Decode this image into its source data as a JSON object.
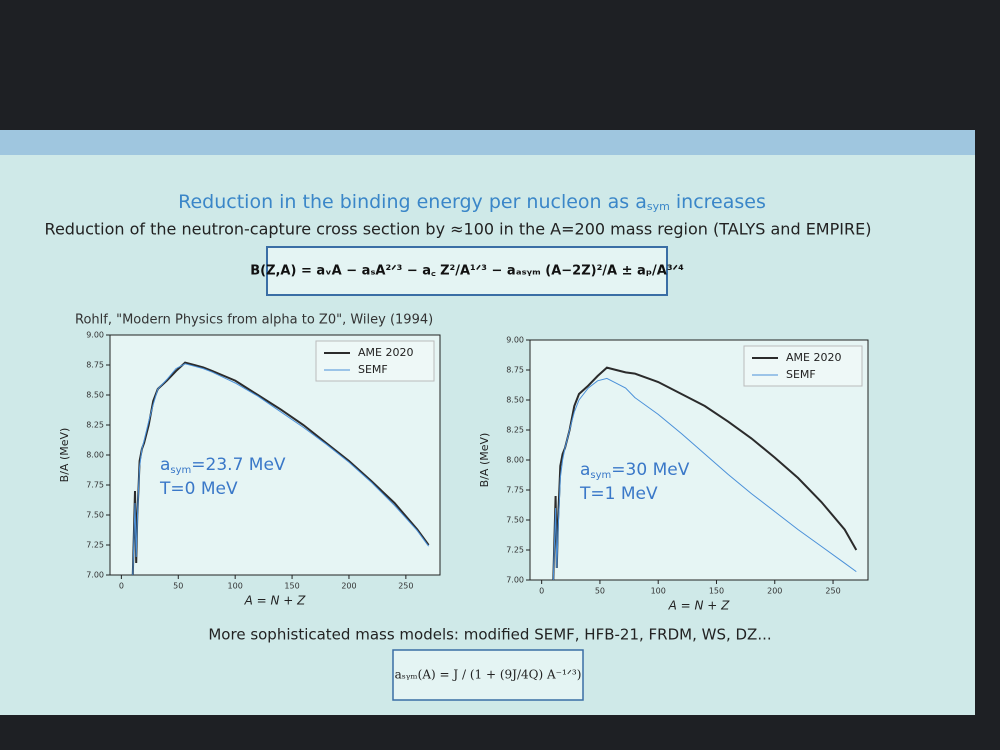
{
  "slide": {
    "title": {
      "text": "Reduction in the binding energy per nucleon as a",
      "subscript": "sym",
      "tail": " increases"
    },
    "subtitle": "Reduction of the neutron-capture cross section by ≈100 in the A=200 mass region (TALYS and EMPIRE)",
    "formula": "B(Z,A) = aᵥA − aₛA²ᐟ³ − a꜀ Z²/A¹ᐟ³ − aₐₛᵧₘ (A−2Z)²/A ± aₚ/A³ᐟ⁴",
    "citation": "Rohlf, \"Modern Physics from alpha to Z0\", Wiley (1994)",
    "footer": "More sophisticated mass models: modified SEMF, HFB-21, FRDM, WS, DZ...",
    "footer_formula": "aₛᵧₘ(A) = J / (1 + (9J/4Q) A⁻¹ᐟ³)"
  },
  "chart_data": [
    {
      "type": "line",
      "x_label": "A = N + Z",
      "y_label": "B/A (MeV)",
      "xlim": [
        -10,
        280
      ],
      "ylim": [
        7.0,
        9.0
      ],
      "xticks": [
        0,
        50,
        100,
        150,
        200,
        250
      ],
      "yticks": [
        {
          "value": 7.0,
          "label": "7.00"
        },
        {
          "value": 7.25,
          "label": "7.25"
        },
        {
          "value": 7.5,
          "label": "7.50"
        },
        {
          "value": 7.75,
          "label": "7.75"
        },
        {
          "value": 8.0,
          "label": "8.00"
        },
        {
          "value": 8.25,
          "label": "8.25"
        },
        {
          "value": 8.5,
          "label": "8.50"
        },
        {
          "value": 8.75,
          "label": "8.75"
        },
        {
          "value": 9.0,
          "label": "9.00"
        }
      ],
      "legend": "upper right",
      "annotation": {
        "symbol": "a",
        "subscript": "sym",
        "text": "=23.7 MeV",
        "line2": "T=0 MeV"
      },
      "x": [
        10,
        12,
        13,
        14,
        15,
        16,
        18,
        20,
        24,
        28,
        32,
        40,
        48,
        56,
        64,
        72,
        80,
        100,
        120,
        140,
        160,
        180,
        200,
        220,
        240,
        260,
        270
      ],
      "series": [
        {
          "name": "AME 2020",
          "color": "#2b2b2b",
          "values": [
            7.0,
            7.7,
            7.1,
            7.5,
            7.7,
            7.95,
            8.05,
            8.1,
            8.25,
            8.45,
            8.55,
            8.62,
            8.7,
            8.77,
            8.75,
            8.73,
            8.7,
            8.62,
            8.5,
            8.38,
            8.25,
            8.1,
            7.95,
            7.78,
            7.6,
            7.38,
            7.25
          ]
        },
        {
          "name": "SEMF",
          "color": "#4a90d9",
          "values": [
            7.0,
            7.6,
            7.15,
            7.45,
            7.7,
            7.9,
            8.05,
            8.12,
            8.28,
            8.42,
            8.55,
            8.63,
            8.72,
            8.76,
            8.74,
            8.72,
            8.69,
            8.6,
            8.49,
            8.36,
            8.23,
            8.09,
            7.94,
            7.77,
            7.58,
            7.37,
            7.24
          ]
        }
      ]
    },
    {
      "type": "line",
      "x_label": "A = N + Z",
      "y_label": "B/A (MeV)",
      "xlim": [
        -10,
        280
      ],
      "ylim": [
        7.0,
        9.0
      ],
      "xticks": [
        0,
        50,
        100,
        150,
        200,
        250
      ],
      "yticks": [
        {
          "value": 7.0,
          "label": "7.00"
        },
        {
          "value": 7.25,
          "label": "7.25"
        },
        {
          "value": 7.5,
          "label": "7.50"
        },
        {
          "value": 7.75,
          "label": "7.75"
        },
        {
          "value": 8.0,
          "label": "8.00"
        },
        {
          "value": 8.25,
          "label": "8.25"
        },
        {
          "value": 8.5,
          "label": "8.50"
        },
        {
          "value": 8.75,
          "label": "8.75"
        },
        {
          "value": 9.0,
          "label": "9.00"
        }
      ],
      "legend": "upper right",
      "annotation": {
        "symbol": "a",
        "subscript": "sym",
        "text": "=30 MeV",
        "line2": "T=1 MeV"
      },
      "x": [
        10,
        12,
        13,
        14,
        15,
        16,
        18,
        20,
        24,
        28,
        32,
        40,
        48,
        56,
        64,
        72,
        80,
        100,
        120,
        140,
        160,
        180,
        200,
        220,
        240,
        260,
        270
      ],
      "series": [
        {
          "name": "AME 2020",
          "color": "#2b2b2b",
          "values": [
            7.0,
            7.7,
            7.1,
            7.5,
            7.7,
            7.95,
            8.05,
            8.1,
            8.25,
            8.45,
            8.55,
            8.62,
            8.7,
            8.77,
            8.75,
            8.73,
            8.72,
            8.65,
            8.55,
            8.45,
            8.32,
            8.18,
            8.02,
            7.85,
            7.65,
            7.42,
            7.25
          ]
        },
        {
          "name": "SEMF",
          "color": "#4a90d9",
          "values": [
            7.0,
            7.6,
            7.1,
            7.4,
            7.6,
            7.85,
            8.0,
            8.1,
            8.25,
            8.4,
            8.5,
            8.6,
            8.66,
            8.68,
            8.64,
            8.6,
            8.52,
            8.38,
            8.22,
            8.05,
            7.88,
            7.72,
            7.57,
            7.42,
            7.28,
            7.14,
            7.07
          ]
        }
      ]
    }
  ]
}
